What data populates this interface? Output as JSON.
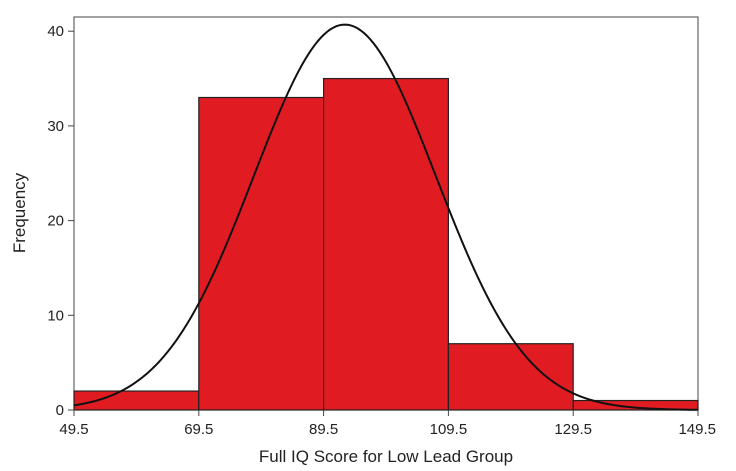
{
  "chart_data": {
    "type": "bar",
    "subtype": "histogram-with-normal-curve",
    "title": "",
    "xlabel": "Full IQ Score for Low Lead Group",
    "ylabel": "Frequency",
    "bins": [
      {
        "start": 49.5,
        "end": 69.5,
        "count": 2
      },
      {
        "start": 69.5,
        "end": 89.5,
        "count": 33
      },
      {
        "start": 89.5,
        "end": 109.5,
        "count": 35
      },
      {
        "start": 109.5,
        "end": 129.5,
        "count": 7
      },
      {
        "start": 129.5,
        "end": 149.5,
        "count": 1
      }
    ],
    "x_ticks": [
      "49.5",
      "69.5",
      "89.5",
      "109.5",
      "129.5",
      "149.5"
    ],
    "y_ticks": [
      "0",
      "10",
      "20",
      "30",
      "40"
    ],
    "xlim": [
      49.5,
      149.5
    ],
    "ylim": [
      0,
      41.5
    ],
    "normal_curve": {
      "mean": 92.9,
      "std_dev": 14.6,
      "n": 78,
      "peak": 40.7
    },
    "bar_color": "#e11b22",
    "edge_color": "#222222",
    "curve_color": "#111111",
    "grid": false
  }
}
